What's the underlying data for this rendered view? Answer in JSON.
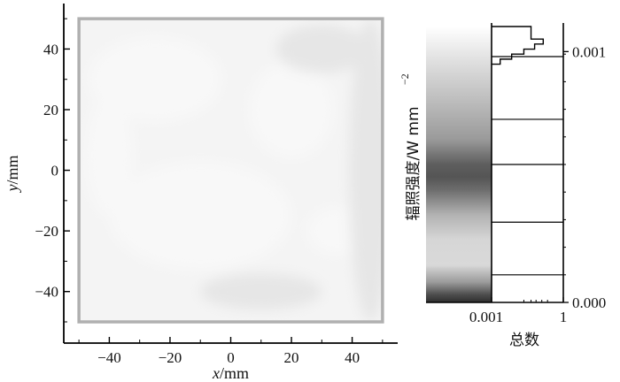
{
  "chart_data": [
    {
      "type": "heatmap",
      "title": "",
      "xlabel_var": "x",
      "xlabel_unit": "/mm",
      "ylabel_var": "y",
      "ylabel_unit": "/mm",
      "xlim": [
        -55,
        55
      ],
      "ylim": [
        -57,
        55
      ],
      "x_ticks": [
        -40,
        -20,
        0,
        20,
        40
      ],
      "y_ticks": [
        -40,
        -20,
        0,
        20,
        40
      ],
      "x_tick_labels": [
        "−40",
        "−20",
        "0",
        "20",
        "40"
      ],
      "y_tick_labels": [
        "−40",
        "−20",
        "0",
        "20",
        "40"
      ],
      "target_region": {
        "x": [
          -50,
          50
        ],
        "y": [
          -50,
          50
        ]
      },
      "field_colors": {
        "base": "#f4f4f4",
        "light": "#f8f8f8",
        "mid": "#eeeeee",
        "dark": "#e6e6e6",
        "border": "#b0b0b0"
      },
      "light_patches": [
        {
          "cx": -25,
          "cy": 30,
          "rx": 22,
          "ry": 14
        },
        {
          "cx": -10,
          "cy": -15,
          "rx": 30,
          "ry": 18
        },
        {
          "cx": 20,
          "cy": 20,
          "rx": 14,
          "ry": 16
        },
        {
          "cx": 35,
          "cy": -20,
          "rx": 10,
          "ry": 8
        },
        {
          "cx": -40,
          "cy": 5,
          "rx": 8,
          "ry": 20
        }
      ],
      "dark_patches": [
        {
          "cx": 46,
          "cy": 0,
          "rx": 7,
          "ry": 50
        },
        {
          "cx": 30,
          "cy": 40,
          "rx": 15,
          "ry": 8
        },
        {
          "cx": 10,
          "cy": -40,
          "rx": 20,
          "ry": 6
        }
      ]
    },
    {
      "type": "bar",
      "title": "",
      "orientation": "horizontal",
      "xlabel": "总数",
      "ylabel": "辐照强度/W  mm",
      "ylabel_exponent": "−2",
      "x_scale": "log",
      "x_tick_labels": [
        "0.001",
        "1"
      ],
      "y_tick_labels": [
        "0.001",
        "0.000"
      ],
      "y_tick_values": [
        0.001,
        0.0
      ],
      "y_range": [
        0.0,
        0.0011
      ],
      "colorbar_range": [
        0.0,
        0.0011
      ],
      "colorbar_stops": [
        {
          "v": 0.0011,
          "color": "#ffffff"
        },
        {
          "v": 0.00095,
          "color": "#dddddd"
        },
        {
          "v": 0.0008,
          "color": "#bcbcbc"
        },
        {
          "v": 0.00065,
          "color": "#9a9a9a"
        },
        {
          "v": 0.00055,
          "color": "#5e5e5e"
        },
        {
          "v": 0.0005,
          "color": "#555555"
        },
        {
          "v": 0.00045,
          "color": "#6c6c6c"
        },
        {
          "v": 0.00035,
          "color": "#b2b2b2"
        },
        {
          "v": 0.00025,
          "color": "#d6d6d6"
        },
        {
          "v": 0.00015,
          "color": "#d9d9d9"
        },
        {
          "v": 8e-05,
          "color": "#9a9a9a"
        },
        {
          "v": 3e-05,
          "color": "#4c4c4c"
        },
        {
          "v": 0.0,
          "color": "#2e2e2e"
        }
      ],
      "histogram": [
        {
          "y0": 0.00105,
          "y1": 0.0011,
          "count": 0.55
        },
        {
          "y0": 0.00103,
          "y1": 0.00105,
          "count": 0.72
        },
        {
          "y0": 0.00101,
          "y1": 0.00103,
          "count": 0.6
        },
        {
          "y0": 0.00099,
          "y1": 0.00101,
          "count": 0.45
        },
        {
          "y0": 0.00097,
          "y1": 0.00099,
          "count": 0.28
        },
        {
          "y0": 0.00095,
          "y1": 0.00097,
          "count": 0.12
        }
      ],
      "horizontal_lines": [
        0.00098,
        0.00073,
        0.00055,
        0.00032,
        0.00011
      ]
    }
  ]
}
